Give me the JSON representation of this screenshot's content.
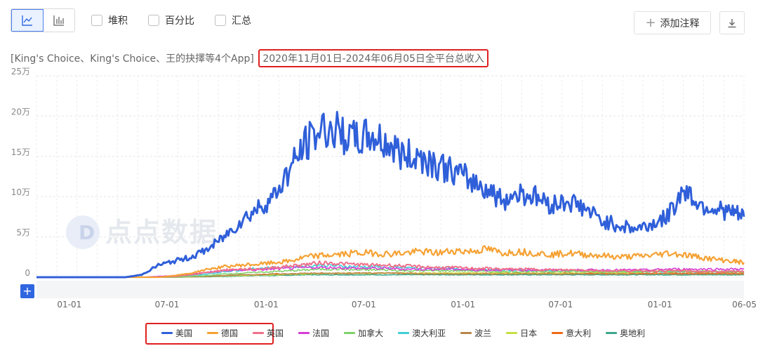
{
  "toolbar": {
    "stacked_label": "堆积",
    "percent_label": "百分比",
    "summary_label": "汇总",
    "add_note_label": "添加注释"
  },
  "subtitle": {
    "prefix": "[King's Choice、King's Choice、王的抉擇等4个App]",
    "date_range": "2020年11月01日-2024年06月05日全平台总收入"
  },
  "colors": {
    "accent": "#2f66e0",
    "highlight_red": "#e02020"
  },
  "icons": {
    "line_view": "line-chart-icon",
    "bar_view": "bar-chart-icon",
    "add": "plus-icon",
    "download": "download-icon",
    "watermark": "diandian-data-logo"
  },
  "watermark_text": "点点数据",
  "chart_data": {
    "type": "line",
    "title": "",
    "xlabel": "",
    "ylabel": "",
    "ylim": [
      0,
      250000
    ],
    "y_ticks": [
      {
        "value": 0,
        "label": "0"
      },
      {
        "value": 50000,
        "label": "5万"
      },
      {
        "value": 100000,
        "label": "10万"
      },
      {
        "value": 150000,
        "label": "15万"
      },
      {
        "value": 200000,
        "label": "20万"
      },
      {
        "value": 250000,
        "label": "25万"
      }
    ],
    "x_ticks": [
      {
        "date": "2021-01-01",
        "label": "01-01"
      },
      {
        "date": "2021-07-01",
        "label": "07-01"
      },
      {
        "date": "2022-01-01",
        "label": "01-01"
      },
      {
        "date": "2022-07-01",
        "label": "07-01"
      },
      {
        "date": "2023-01-01",
        "label": "01-01"
      },
      {
        "date": "2023-07-01",
        "label": "07-01"
      },
      {
        "date": "2024-01-01",
        "label": "01-01"
      },
      {
        "date": "2024-06-05",
        "label": "06-05"
      }
    ],
    "x_range": [
      "2020-11-01",
      "2024-06-05"
    ],
    "grid": true,
    "legend_position": "bottom",
    "x": [
      "2020-11-01",
      "2021-01-01",
      "2021-03-01",
      "2021-04-15",
      "2021-05-15",
      "2021-06-15",
      "2021-07-15",
      "2021-08-15",
      "2021-09-15",
      "2021-10-15",
      "2021-11-15",
      "2021-12-15",
      "2022-01-15",
      "2022-02-15",
      "2022-03-15",
      "2022-04-15",
      "2022-05-15",
      "2022-06-15",
      "2022-07-15",
      "2022-08-15",
      "2022-09-15",
      "2022-10-15",
      "2022-11-15",
      "2022-12-15",
      "2023-01-15",
      "2023-02-15",
      "2023-03-15",
      "2023-04-15",
      "2023-05-15",
      "2023-06-15",
      "2023-07-15",
      "2023-08-15",
      "2023-09-15",
      "2023-10-15",
      "2023-11-15",
      "2023-12-15",
      "2024-01-15",
      "2024-02-15",
      "2024-03-15",
      "2024-04-15",
      "2024-05-15",
      "2024-06-05"
    ],
    "series": [
      {
        "name": "美国",
        "color": "#2f5fd9",
        "width": 3,
        "values": [
          0,
          0,
          0,
          0,
          3000,
          15000,
          20000,
          25000,
          35000,
          50000,
          70000,
          85000,
          100000,
          135000,
          165000,
          185000,
          180000,
          170000,
          175000,
          165000,
          150000,
          150000,
          140000,
          130000,
          120000,
          110000,
          95000,
          105000,
          100000,
          90000,
          95000,
          85000,
          70000,
          65000,
          60000,
          65000,
          75000,
          110000,
          90000,
          85000,
          80000,
          75000
        ]
      },
      {
        "name": "德国",
        "color": "#f5a133",
        "width": 2.2,
        "values": [
          0,
          0,
          0,
          0,
          0,
          0,
          2000,
          5000,
          10000,
          13000,
          15000,
          16000,
          18000,
          20000,
          25000,
          27000,
          28000,
          30000,
          30000,
          29000,
          30000,
          32000,
          30000,
          33000,
          32000,
          35000,
          30000,
          32000,
          30000,
          28000,
          30000,
          28000,
          27000,
          25000,
          26000,
          27000,
          30000,
          28000,
          25000,
          22000,
          20000,
          18000
        ]
      },
      {
        "name": "英国",
        "color": "#f0708a",
        "width": 2,
        "values": [
          0,
          0,
          0,
          0,
          0,
          0,
          1000,
          3000,
          6000,
          9000,
          10000,
          10000,
          12000,
          14000,
          16000,
          18000,
          17000,
          16000,
          15000,
          15000,
          14000,
          13000,
          12000,
          12000,
          11000,
          11000,
          10000,
          10000,
          10000,
          9000,
          9000,
          9000,
          8000,
          8000,
          8000,
          8000,
          8000,
          8000,
          7000,
          7000,
          7000,
          7000
        ]
      },
      {
        "name": "法国",
        "color": "#d63cd6",
        "width": 1.6,
        "values": [
          0,
          0,
          0,
          0,
          0,
          1000,
          2000,
          4000,
          6000,
          8000,
          9000,
          9000,
          10000,
          11000,
          12000,
          12000,
          12000,
          11000,
          11000,
          11000,
          10000,
          10000,
          10000,
          10000,
          9000,
          9000,
          9000,
          9000,
          9000,
          9000,
          9000,
          9000,
          9000,
          9000,
          9000,
          9000,
          10000,
          10000,
          10000,
          10000,
          10000,
          10000
        ]
      },
      {
        "name": "加拿大",
        "color": "#7fd16a",
        "width": 1.6,
        "values": [
          0,
          0,
          0,
          0,
          0,
          0,
          0,
          1000,
          2000,
          4000,
          5000,
          6000,
          7000,
          8000,
          9000,
          10000,
          10000,
          9000,
          9000,
          9000,
          8000,
          8000,
          8000,
          8000,
          8000,
          7000,
          7000,
          7000,
          7000,
          7000,
          7000,
          7000,
          7000,
          7000,
          7000,
          7000,
          7000,
          7000,
          7000,
          7000,
          7000,
          7000
        ]
      },
      {
        "name": "澳大利亚",
        "color": "#3fcfd6",
        "width": 1.6,
        "values": [
          0,
          0,
          0,
          0,
          0,
          0,
          1000,
          2000,
          4000,
          7000,
          9000,
          11000,
          12000,
          13000,
          14000,
          15000,
          14000,
          13000,
          13000,
          12000,
          12000,
          11000,
          11000,
          10000,
          10000,
          9000,
          9000,
          9000,
          8000,
          8000,
          8000,
          8000,
          8000,
          7000,
          7000,
          7000,
          7000,
          7000,
          7000,
          7000,
          7000,
          7000
        ]
      },
      {
        "name": "波兰",
        "color": "#b8864a",
        "width": 1.6,
        "values": [
          0,
          0,
          0,
          0,
          0,
          0,
          0,
          500,
          1000,
          2000,
          3000,
          3000,
          4000,
          4000,
          5000,
          5000,
          5000,
          5000,
          5000,
          5000,
          5000,
          4000,
          4000,
          4000,
          4000,
          4000,
          4000,
          4000,
          4000,
          4000,
          4000,
          4000,
          4000,
          4000,
          4000,
          4000,
          4000,
          4000,
          4000,
          4000,
          4000,
          4000
        ]
      },
      {
        "name": "日本",
        "color": "#c6e046",
        "width": 1.6,
        "values": [
          0,
          0,
          0,
          0,
          0,
          0,
          0,
          500,
          1000,
          1500,
          2000,
          2500,
          3000,
          3500,
          4000,
          4500,
          5000,
          5000,
          5000,
          5000,
          5000,
          5000,
          5000,
          5000,
          5000,
          5000,
          5000,
          5000,
          5000,
          5000,
          5000,
          6000,
          6000,
          6000,
          6000,
          7000,
          8000,
          8000,
          8000,
          7000,
          7000,
          7000
        ]
      },
      {
        "name": "意大利",
        "color": "#f06a14",
        "width": 1.6,
        "values": [
          0,
          0,
          0,
          0,
          0,
          0,
          0,
          500,
          1000,
          2000,
          3000,
          3000,
          4000,
          4000,
          4000,
          5000,
          5000,
          5000,
          5000,
          5000,
          5000,
          5000,
          5000,
          5000,
          5000,
          5000,
          5000,
          5000,
          5000,
          5000,
          5000,
          5000,
          5000,
          5000,
          5000,
          5000,
          5000,
          5000,
          5000,
          5000,
          5000,
          5000
        ]
      },
      {
        "name": "奥地利",
        "color": "#3aa88c",
        "width": 1.6,
        "values": [
          0,
          0,
          0,
          0,
          0,
          0,
          0,
          300,
          600,
          1000,
          1500,
          2000,
          2000,
          2500,
          3000,
          3000,
          3000,
          3000,
          3000,
          3000,
          3000,
          3000,
          3000,
          3000,
          3000,
          3000,
          3000,
          3000,
          3000,
          3000,
          3000,
          3000,
          3000,
          3000,
          3000,
          3000,
          3000,
          3000,
          3000,
          3000,
          3000,
          3000
        ]
      }
    ]
  }
}
